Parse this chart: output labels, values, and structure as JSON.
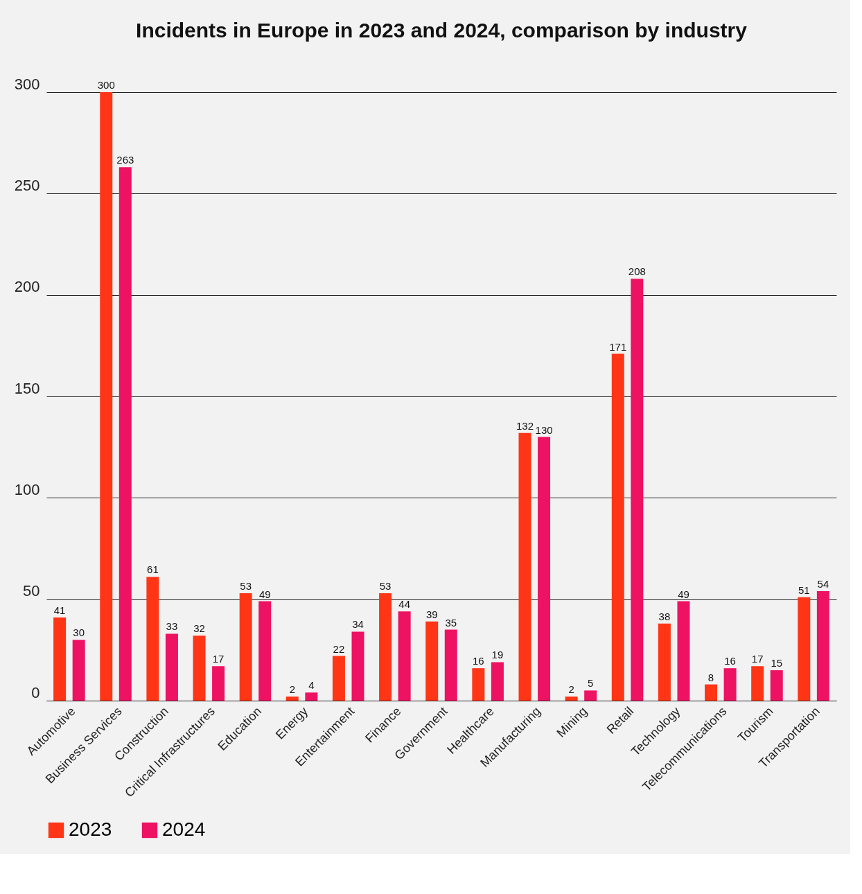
{
  "chart_data": {
    "type": "bar",
    "title": "Incidents in Europe  in 2023 and 2024, comparison by industry",
    "categories": [
      "Automotive",
      "Business Services",
      "Construction",
      "Critical Infrastructures",
      "Education",
      "Energy",
      "Entertainment",
      "Finance",
      "Government",
      "Healthcare",
      "Manufacturing",
      "Mining",
      "Retail",
      "Technology",
      "Telecommunications",
      "Tourism",
      "Transportation"
    ],
    "series": [
      {
        "name": "2023",
        "color": "#ff3516",
        "values": [
          41,
          300,
          61,
          32,
          53,
          2,
          22,
          53,
          39,
          16,
          132,
          2,
          171,
          38,
          8,
          17,
          51
        ]
      },
      {
        "name": "2024",
        "color": "#ee1262",
        "values": [
          30,
          263,
          33,
          17,
          49,
          4,
          34,
          44,
          35,
          19,
          130,
          5,
          208,
          49,
          16,
          15,
          54
        ]
      }
    ],
    "ylim": [
      0,
      300
    ],
    "yticks": [
      0,
      50,
      100,
      150,
      200,
      250,
      300
    ],
    "grid": "y",
    "legend": "bottom",
    "data_labels": true
  }
}
